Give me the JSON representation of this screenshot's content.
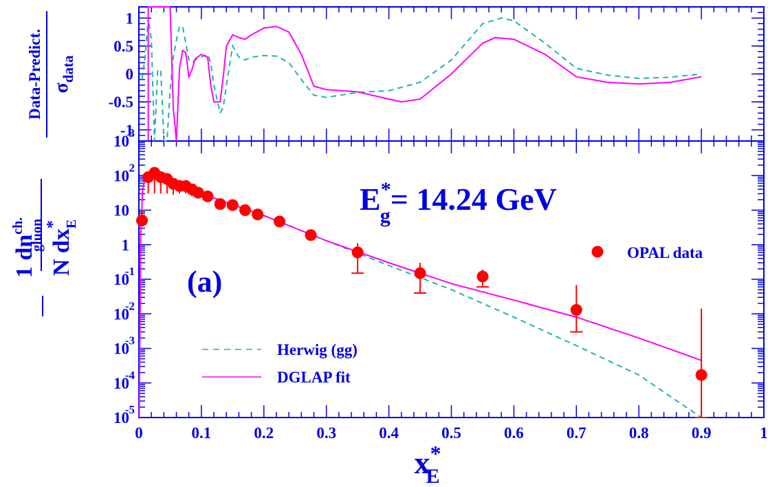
{
  "chart_data": [
    {
      "type": "line",
      "panel": "ratio",
      "ylabel_top": "Data-Predict.",
      "ylabel_bottom": "σ",
      "ylabel_sub": "data",
      "xlim": [
        0,
        1
      ],
      "ylim": [
        -1.2,
        1.2
      ],
      "yticks": [
        {
          "v": 1,
          "label": "1"
        },
        {
          "v": 0.5,
          "label": "0.5"
        },
        {
          "v": 0,
          "label": "0"
        },
        {
          "v": -0.5,
          "label": "-0.5"
        },
        {
          "v": -1,
          "label": "-1"
        }
      ],
      "series": [
        {
          "color": "#20b2aa",
          "dash": true,
          "x": [
            0.005,
            0.01,
            0.015,
            0.02,
            0.025,
            0.03,
            0.035,
            0.04,
            0.045,
            0.05,
            0.055,
            0.06,
            0.065,
            0.07,
            0.075,
            0.08,
            0.085,
            0.09,
            0.1,
            0.11,
            0.115,
            0.12,
            0.13,
            0.135,
            0.14,
            0.15,
            0.16,
            0.17,
            0.18,
            0.2,
            0.22,
            0.24,
            0.26,
            0.28,
            0.3,
            0.35,
            0.4,
            0.45,
            0.5,
            0.55,
            0.58,
            0.6,
            0.65,
            0.7,
            0.75,
            0.8,
            0.85,
            0.9
          ],
          "y": [
            -0.1,
            0.3,
            1.0,
            0.6,
            -1.2,
            0.05,
            0.08,
            -1.2,
            -1.2,
            -0.3,
            0.3,
            0.6,
            0.85,
            0.85,
            0.55,
            0.25,
            0.2,
            0.25,
            0.3,
            0.35,
            0.2,
            -0.2,
            -0.7,
            -0.6,
            -0.2,
            0.5,
            0.3,
            0.25,
            0.3,
            0.33,
            0.32,
            0.2,
            -0.1,
            -0.38,
            -0.42,
            -0.33,
            -0.3,
            -0.15,
            0.25,
            0.9,
            1.0,
            0.95,
            0.55,
            0.1,
            -0.02,
            -0.08,
            -0.06,
            0.0
          ]
        },
        {
          "color": "#ff00ff",
          "dash": false,
          "x": [
            0.015,
            0.015,
            0.017,
            0.02,
            0.025,
            0.03,
            0.035,
            0.04,
            0.045,
            0.05,
            0.055,
            0.06,
            0.065,
            0.07,
            0.075,
            0.08,
            0.085,
            0.09,
            0.1,
            0.11,
            0.115,
            0.12,
            0.13,
            0.135,
            0.14,
            0.15,
            0.16,
            0.17,
            0.18,
            0.2,
            0.22,
            0.24,
            0.26,
            0.28,
            0.3,
            0.35,
            0.4,
            0.42,
            0.45,
            0.5,
            0.55,
            0.57,
            0.6,
            0.65,
            0.7,
            0.75,
            0.8,
            0.85,
            0.9
          ],
          "y": [
            -1.2,
            1.2,
            1.2,
            1.2,
            1.2,
            1.2,
            1.2,
            1.2,
            1.2,
            1.2,
            -0.6,
            -1.2,
            0.1,
            0.42,
            0.38,
            -0.05,
            0.08,
            0.27,
            0.35,
            0.3,
            -0.2,
            -0.5,
            -0.5,
            -0.05,
            0.5,
            0.7,
            0.65,
            0.62,
            0.7,
            0.82,
            0.85,
            0.75,
            0.35,
            -0.22,
            -0.28,
            -0.32,
            -0.45,
            -0.5,
            -0.45,
            0.0,
            0.55,
            0.65,
            0.62,
            0.35,
            -0.05,
            -0.15,
            -0.18,
            -0.15,
            -0.05
          ]
        }
      ]
    },
    {
      "type": "line",
      "panel": "main",
      "scale": "log",
      "xlabel": "x",
      "xlabel_sup": "*",
      "xlabel_sub": "E",
      "ylabel_num": "1  dn",
      "ylabel_num_sup": "ch.",
      "ylabel_num_sub": "gluon",
      "ylabel_den": "N  dx",
      "ylabel_den_sup": "*",
      "ylabel_den_sub": "E",
      "annotation": {
        "text_main": "E",
        "text_sup": "*",
        "text_sub": "g",
        "text_rest": "= 14.24 GeV"
      },
      "panel_tag": "(a)",
      "xlim": [
        0,
        1
      ],
      "ylim": [
        -5,
        3
      ],
      "xticks": [
        {
          "v": 0,
          "label": "0"
        },
        {
          "v": 0.1,
          "label": "0.1"
        },
        {
          "v": 0.2,
          "label": "0.2"
        },
        {
          "v": 0.3,
          "label": "0.3"
        },
        {
          "v": 0.4,
          "label": "0.4"
        },
        {
          "v": 0.5,
          "label": "0.5"
        },
        {
          "v": 0.6,
          "label": "0.6"
        },
        {
          "v": 0.7,
          "label": "0.7"
        },
        {
          "v": 0.8,
          "label": "0.8"
        },
        {
          "v": 0.9,
          "label": "0.9"
        },
        {
          "v": 1,
          "label": "1"
        }
      ],
      "yticks": [
        {
          "v": 3,
          "base": "10",
          "exp": "3"
        },
        {
          "v": 2,
          "base": "10",
          "exp": "2"
        },
        {
          "v": 1,
          "base": "10",
          "exp": ""
        },
        {
          "v": 0,
          "base": "1",
          "exp": ""
        },
        {
          "v": -1,
          "base": "10",
          "exp": "-1"
        },
        {
          "v": -2,
          "base": "10",
          "exp": "-2"
        },
        {
          "v": -3,
          "base": "10",
          "exp": "-3"
        },
        {
          "v": -4,
          "base": "10",
          "exp": "-4"
        },
        {
          "v": -5,
          "base": "10",
          "exp": "-5"
        }
      ],
      "legend": [
        {
          "name": "OPAL data",
          "style": "marker",
          "color": "#ff0000"
        },
        {
          "name": "Herwig (gg)",
          "style": "dashed",
          "color": "#20b2aa"
        },
        {
          "name": "DGLAP fit",
          "style": "solid",
          "color": "#ff00ff"
        }
      ],
      "data_points": {
        "x": [
          0.005,
          0.015,
          0.025,
          0.035,
          0.045,
          0.055,
          0.065,
          0.075,
          0.085,
          0.095,
          0.11,
          0.13,
          0.15,
          0.17,
          0.19,
          0.225,
          0.275,
          0.35,
          0.45,
          0.55,
          0.7,
          0.9
        ],
        "y": [
          5.0,
          90,
          120,
          90,
          80,
          58,
          50,
          50,
          40,
          32,
          25,
          15,
          14,
          10,
          7.5,
          4.7,
          1.9,
          0.6,
          0.15,
          0.12,
          0.013,
          0.00017
        ],
        "y_err_low": [
          0.01,
          60,
          90,
          60,
          50,
          30,
          20,
          20,
          15,
          10,
          6,
          3,
          3,
          2,
          1,
          0.6,
          0.2,
          0.45,
          0.11,
          0.06,
          0.01,
          0.00016
        ],
        "y_err_high": [
          5,
          40,
          40,
          30,
          30,
          20,
          20,
          20,
          15,
          10,
          6,
          3,
          3,
          2,
          1,
          0.6,
          0.2,
          0.5,
          0.15,
          0.07,
          0.055,
          0.014
        ]
      },
      "series": [
        {
          "color": "#20b2aa",
          "dash": true,
          "x": [
            0.0005,
            0.003,
            0.006,
            0.01,
            0.02,
            0.04,
            0.1,
            0.2,
            0.3,
            0.4,
            0.5,
            0.6,
            0.7,
            0.8,
            0.9
          ],
          "y": [
            1e-05,
            2,
            40,
            90,
            110,
            80,
            30,
            7,
            1.3,
            0.25,
            0.05,
            0.008,
            0.0012,
            0.00017,
            1e-05
          ]
        },
        {
          "color": "#ff00ff",
          "dash": false,
          "x": [
            0.0005,
            0.003,
            0.006,
            0.01,
            0.02,
            0.04,
            0.1,
            0.2,
            0.3,
            0.4,
            0.5,
            0.6,
            0.7,
            0.8,
            0.9
          ],
          "y": [
            1e-05,
            2,
            40,
            90,
            110,
            80,
            30,
            7,
            1.3,
            0.3,
            0.075,
            0.025,
            0.008,
            0.002,
            0.00045
          ]
        }
      ]
    }
  ]
}
